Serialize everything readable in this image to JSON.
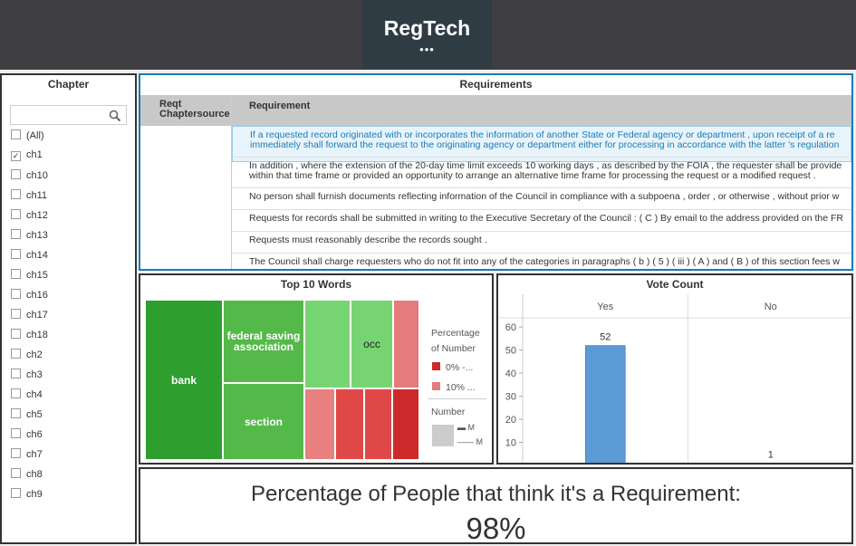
{
  "header": {
    "title": "RegTech"
  },
  "chapter": {
    "title": "Chapter",
    "items": [
      "(All)",
      "ch1",
      "ch10",
      "ch11",
      "ch12",
      "ch13",
      "ch14",
      "ch15",
      "ch16",
      "ch17",
      "ch18",
      "ch2",
      "ch3",
      "ch4",
      "ch5",
      "ch6",
      "ch7",
      "ch8",
      "ch9"
    ],
    "checked": [
      false,
      true,
      false,
      false,
      false,
      false,
      false,
      false,
      false,
      false,
      false,
      false,
      false,
      false,
      false,
      false,
      false,
      false,
      false
    ]
  },
  "requirements": {
    "title": "Requirements",
    "columns": [
      "Reqt Chaptersource",
      "Requirement"
    ],
    "rows": [
      [
        "If a requested record originated with or incorporates the information of another State or Federal agency or department , upon receipt of a re",
        "immediately shall forward the request to the originating agency or department either for processing in accordance with the latter 's regulation"
      ],
      [
        "In addition , where the extension of the 20-day time limit exceeds 10 working days , as described by the FOIA , the requester shall be provide",
        "within that time frame or provided an opportunity to arrange an alternative time frame for processing the request or a modified request ."
      ],
      [
        "No person shall furnish documents reflecting information of the Council in compliance with a subpoena , order , or otherwise , without prior w"
      ],
      [
        "Requests for records shall be submitted in writing to the Executive Secretary of the Council : ( C ) By email to the address provided on the FR"
      ],
      [
        "Requests must reasonably describe the records sought ."
      ],
      [
        "The Council shall charge requesters who do not fit into any of the categories in paragraphs ( b ) ( 5 ) ( iii ) ( A ) and ( B ) of this section fees w"
      ]
    ]
  },
  "top_words": {
    "title": "Top 10 Words",
    "words": [
      "bank",
      "federal saving association",
      "section",
      "occ"
    ],
    "legend": {
      "title": "Percentage of Number",
      "items": [
        "0% -...",
        "10% ..."
      ],
      "size_title": "Number",
      "size_items": [
        "M",
        "M"
      ]
    }
  },
  "vote_count": {
    "type": "bar",
    "title": "Vote Count",
    "categories": [
      "Yes",
      "No"
    ],
    "values": [
      52,
      1
    ],
    "color": "#5b9bd5",
    "ylim": [
      0,
      64
    ],
    "yticks": [
      10,
      20,
      30,
      40,
      50,
      60
    ]
  },
  "summary": {
    "label": "Percentage of People that think it's a Requirement:",
    "value": "98%"
  }
}
